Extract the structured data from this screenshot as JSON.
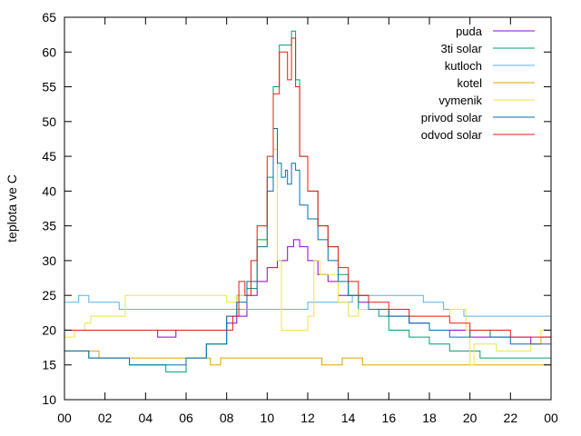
{
  "chart_data": {
    "type": "line",
    "ylabel": "teplota ve C",
    "xlabel": "",
    "x_ticks": [
      "00",
      "02",
      "04",
      "06",
      "08",
      "10",
      "12",
      "14",
      "16",
      "18",
      "20",
      "22",
      "00"
    ],
    "xlim": [
      0,
      24
    ],
    "ylim": [
      10,
      65
    ],
    "y_ticks": [
      10,
      15,
      20,
      25,
      30,
      35,
      40,
      45,
      50,
      55,
      60,
      65
    ],
    "legend_position": "top-right",
    "grid": false,
    "series": [
      {
        "name": "puda",
        "color": "#9400d3",
        "points": [
          [
            0,
            20
          ],
          [
            4.5,
            20
          ],
          [
            4.6,
            19
          ],
          [
            5.3,
            19
          ],
          [
            5.5,
            20
          ],
          [
            7.3,
            20
          ],
          [
            8.0,
            21
          ],
          [
            8.5,
            22
          ],
          [
            9.0,
            25
          ],
          [
            9.5,
            27
          ],
          [
            10.0,
            29
          ],
          [
            10.5,
            30
          ],
          [
            11.0,
            32
          ],
          [
            11.3,
            33
          ],
          [
            11.6,
            32
          ],
          [
            12.0,
            30
          ],
          [
            12.5,
            28
          ],
          [
            13.0,
            27
          ],
          [
            13.5,
            25
          ],
          [
            14.5,
            24
          ],
          [
            15.0,
            23
          ],
          [
            16.0,
            22
          ],
          [
            17.0,
            21
          ],
          [
            18.0,
            20
          ],
          [
            19.0,
            20
          ],
          [
            20.0,
            19
          ],
          [
            21.0,
            19
          ],
          [
            22.0,
            19
          ],
          [
            23.0,
            18
          ],
          [
            23.5,
            19
          ],
          [
            24,
            19
          ]
        ]
      },
      {
        "name": "3ti solar",
        "color": "#009e73",
        "points": [
          [
            0,
            17
          ],
          [
            1.0,
            17
          ],
          [
            1.2,
            16
          ],
          [
            3.0,
            16
          ],
          [
            3.2,
            15
          ],
          [
            4.8,
            15
          ],
          [
            5.0,
            14
          ],
          [
            5.6,
            14
          ],
          [
            6.0,
            16
          ],
          [
            7.0,
            18
          ],
          [
            8.0,
            22
          ],
          [
            8.5,
            25
          ],
          [
            9.0,
            26
          ],
          [
            9.5,
            33
          ],
          [
            10.0,
            42
          ],
          [
            10.3,
            55
          ],
          [
            10.6,
            61
          ],
          [
            11.0,
            61
          ],
          [
            11.2,
            63
          ],
          [
            11.4,
            56
          ],
          [
            11.6,
            45
          ],
          [
            12.0,
            40
          ],
          [
            12.5,
            35
          ],
          [
            13.0,
            32
          ],
          [
            13.5,
            28
          ],
          [
            14.0,
            25
          ],
          [
            14.5,
            23
          ],
          [
            15.5,
            22
          ],
          [
            16.0,
            20
          ],
          [
            17.0,
            19
          ],
          [
            18.0,
            18
          ],
          [
            19.0,
            17
          ],
          [
            20.0,
            17
          ],
          [
            20.5,
            16
          ],
          [
            22.0,
            16
          ],
          [
            24,
            15
          ]
        ]
      },
      {
        "name": "kutloch",
        "color": "#56b4e9",
        "points": [
          [
            0,
            24
          ],
          [
            0.5,
            24
          ],
          [
            0.7,
            25
          ],
          [
            1.0,
            25
          ],
          [
            1.2,
            24
          ],
          [
            2.5,
            24
          ],
          [
            2.7,
            23
          ],
          [
            8.0,
            23
          ],
          [
            12.0,
            24
          ],
          [
            14.0,
            24
          ],
          [
            14.2,
            25
          ],
          [
            17.5,
            25
          ],
          [
            17.7,
            24
          ],
          [
            18.5,
            24
          ],
          [
            18.7,
            23
          ],
          [
            19.5,
            23
          ],
          [
            19.7,
            22
          ],
          [
            22.5,
            22
          ],
          [
            22.7,
            22
          ],
          [
            24,
            22
          ]
        ]
      },
      {
        "name": "kotel",
        "color": "#e69f00",
        "points": [
          [
            0,
            17
          ],
          [
            1.5,
            17
          ],
          [
            1.7,
            16
          ],
          [
            7.0,
            16
          ],
          [
            7.2,
            15
          ],
          [
            7.5,
            15
          ],
          [
            7.7,
            16
          ],
          [
            12.5,
            16
          ],
          [
            12.7,
            15
          ],
          [
            13.5,
            15
          ],
          [
            13.7,
            16
          ],
          [
            14.5,
            16
          ],
          [
            14.7,
            15
          ],
          [
            24,
            15
          ]
        ]
      },
      {
        "name": "vymenik",
        "color": "#f0e442",
        "points": [
          [
            0,
            19
          ],
          [
            0.2,
            19
          ],
          [
            0.5,
            20
          ],
          [
            1.0,
            21
          ],
          [
            1.3,
            22
          ],
          [
            2.5,
            22
          ],
          [
            3.0,
            25
          ],
          [
            7.5,
            25
          ],
          [
            8.0,
            24
          ],
          [
            8.5,
            25
          ],
          [
            9.0,
            27
          ],
          [
            9.5,
            32
          ],
          [
            10.0,
            40
          ],
          [
            10.3,
            46
          ],
          [
            10.5,
            30
          ],
          [
            10.7,
            20
          ],
          [
            11.5,
            20
          ],
          [
            12.0,
            22
          ],
          [
            12.3,
            30
          ],
          [
            12.6,
            28
          ],
          [
            13.5,
            24
          ],
          [
            14.0,
            22
          ],
          [
            14.5,
            23
          ],
          [
            16.0,
            23
          ],
          [
            17.0,
            22
          ],
          [
            18.5,
            22
          ],
          [
            19.0,
            23
          ],
          [
            19.5,
            23
          ],
          [
            19.8,
            20
          ],
          [
            20.0,
            15
          ],
          [
            20.2,
            18
          ],
          [
            21.0,
            18
          ],
          [
            21.3,
            17
          ],
          [
            22.5,
            17
          ],
          [
            23.0,
            18
          ],
          [
            23.5,
            20
          ],
          [
            24,
            20
          ]
        ]
      },
      {
        "name": "privod solar",
        "color": "#0072b2",
        "points": [
          [
            0,
            17
          ],
          [
            1.0,
            17
          ],
          [
            1.2,
            16
          ],
          [
            3.0,
            16
          ],
          [
            3.2,
            15
          ],
          [
            5.0,
            15
          ],
          [
            6.0,
            16
          ],
          [
            7.0,
            18
          ],
          [
            8.0,
            22
          ],
          [
            8.5,
            24
          ],
          [
            9.0,
            27
          ],
          [
            9.5,
            32
          ],
          [
            10.0,
            40
          ],
          [
            10.3,
            49
          ],
          [
            10.5,
            44
          ],
          [
            10.7,
            42
          ],
          [
            10.9,
            43
          ],
          [
            11.0,
            41
          ],
          [
            11.2,
            44
          ],
          [
            11.4,
            43
          ],
          [
            11.6,
            38
          ],
          [
            12.0,
            36
          ],
          [
            12.5,
            33
          ],
          [
            13.0,
            30
          ],
          [
            13.5,
            27
          ],
          [
            14.0,
            25
          ],
          [
            15.0,
            23
          ],
          [
            16.0,
            22
          ],
          [
            17.0,
            21
          ],
          [
            18.0,
            20
          ],
          [
            19.0,
            19
          ],
          [
            20.0,
            20
          ],
          [
            21.0,
            19
          ],
          [
            22.0,
            18
          ],
          [
            24,
            18
          ]
        ]
      },
      {
        "name": "odvod solar",
        "color": "#e51e10",
        "points": [
          [
            0,
            20
          ],
          [
            8.0,
            20
          ],
          [
            8.3,
            22
          ],
          [
            8.6,
            27
          ],
          [
            8.9,
            25
          ],
          [
            9.2,
            30
          ],
          [
            9.5,
            35
          ],
          [
            10.0,
            45
          ],
          [
            10.3,
            54
          ],
          [
            10.6,
            60
          ],
          [
            10.8,
            60
          ],
          [
            11.0,
            56
          ],
          [
            11.2,
            62
          ],
          [
            11.4,
            55
          ],
          [
            11.6,
            45
          ],
          [
            12.0,
            40
          ],
          [
            12.5,
            35
          ],
          [
            13.0,
            32
          ],
          [
            13.5,
            29
          ],
          [
            14.0,
            27
          ],
          [
            14.5,
            25
          ],
          [
            15.0,
            24
          ],
          [
            16.0,
            23
          ],
          [
            17.0,
            22
          ],
          [
            18.0,
            22
          ],
          [
            19.0,
            21
          ],
          [
            20.0,
            20
          ],
          [
            21.0,
            20
          ],
          [
            22.0,
            19
          ],
          [
            23.0,
            19
          ],
          [
            24,
            19
          ]
        ]
      }
    ]
  }
}
